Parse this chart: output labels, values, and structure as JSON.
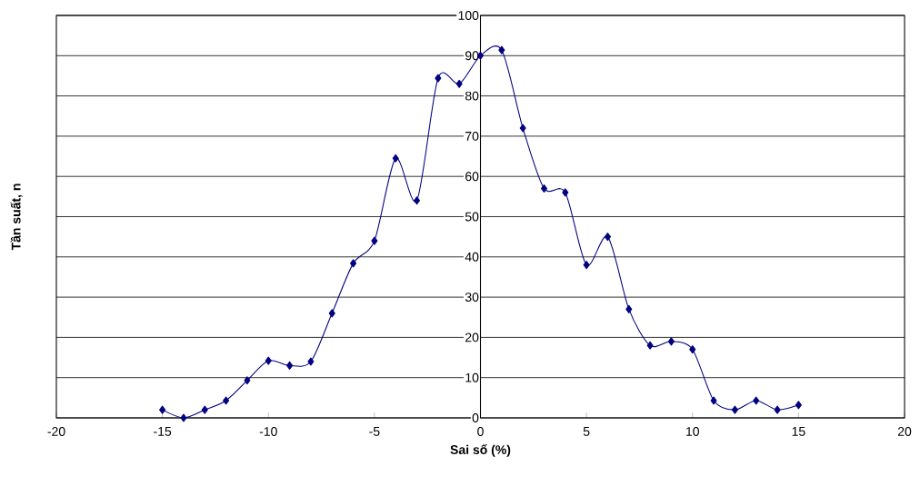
{
  "chart_data": {
    "type": "line",
    "xlabel": "Sai số (%)",
    "ylabel": "Tần suất, n",
    "x": [
      -15,
      -14,
      -13,
      -12,
      -11,
      -10,
      -9,
      -8,
      -7,
      -6,
      -5,
      -4,
      -3,
      -2,
      -1,
      0,
      1,
      2,
      3,
      4,
      5,
      6,
      7,
      8,
      9,
      10,
      11,
      12,
      13,
      14,
      15
    ],
    "values": [
      2,
      0,
      2,
      4.3,
      9.3,
      14.2,
      13,
      14,
      26,
      38.4,
      44,
      64.5,
      54,
      84.4,
      83,
      90,
      91.4,
      72,
      57,
      56,
      38,
      45,
      27,
      18,
      19,
      17,
      4.3,
      2,
      4.3,
      2,
      3.2
    ],
    "color": "#000080",
    "marker": "diamond",
    "grid": "y",
    "xlim": [
      -20,
      20
    ],
    "ylim": [
      0,
      100
    ],
    "xticks": [
      -20,
      -15,
      -10,
      -5,
      0,
      5,
      10,
      15,
      20
    ],
    "yticks": [
      0,
      10,
      20,
      30,
      40,
      50,
      60,
      70,
      80,
      90,
      100
    ]
  }
}
